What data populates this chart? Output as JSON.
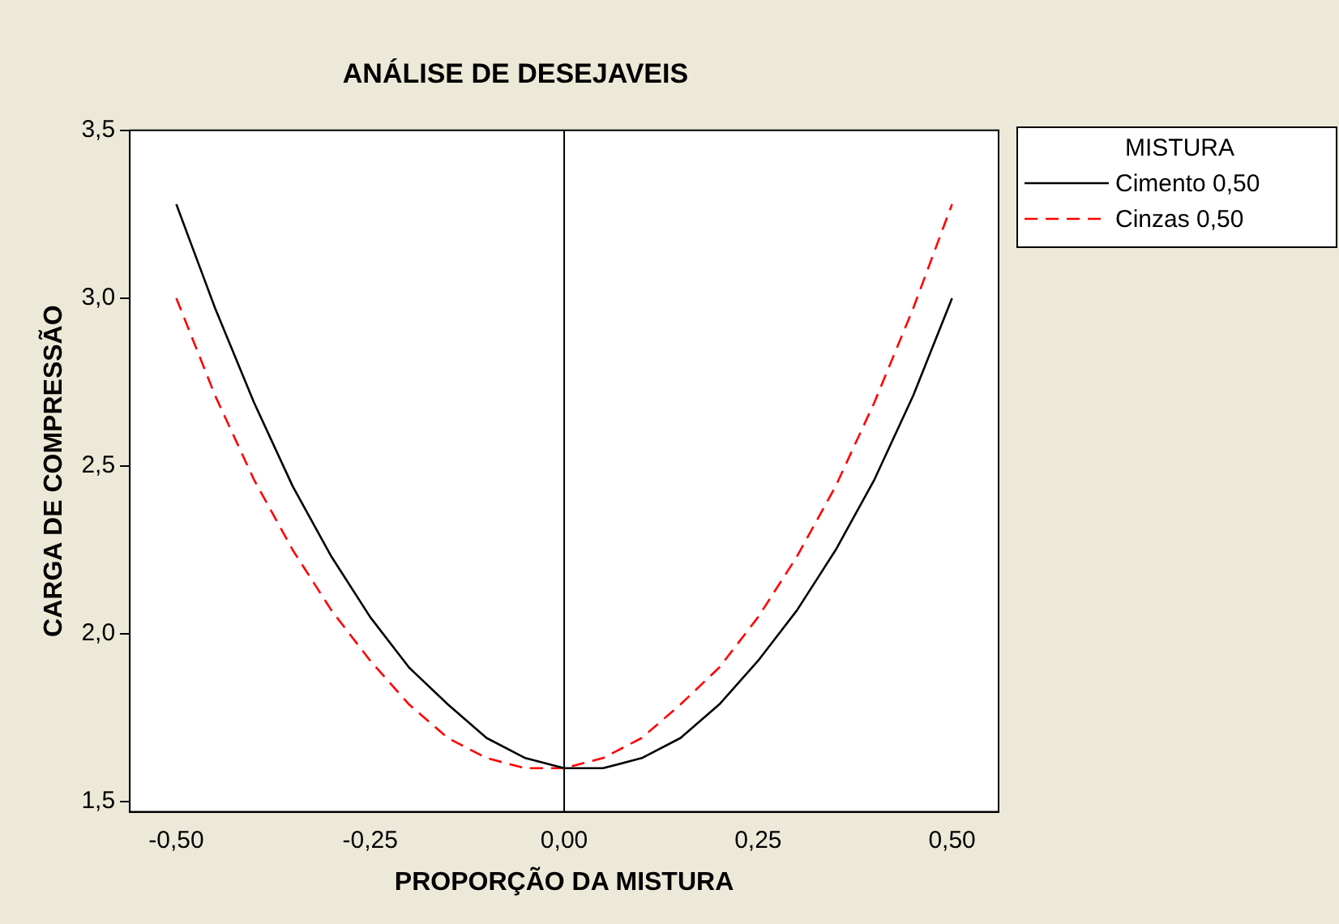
{
  "chart_data": {
    "type": "line",
    "title": "ANÁLISE DE DESEJAVEIS",
    "xlabel": "PROPORÇÃO DA MISTURA",
    "ylabel": "CARGA DE COMPRESSÃO",
    "legend_title": "MISTURA",
    "legend": "top right",
    "x": [
      -0.5,
      -0.45,
      -0.4,
      -0.35,
      -0.3,
      -0.25,
      -0.2,
      -0.15,
      -0.1,
      -0.05,
      0,
      0.05,
      0.1,
      0.15,
      0.2,
      0.25,
      0.3,
      0.35,
      0.4,
      0.45,
      0.5
    ],
    "series": [
      {
        "name": "Cimento 0,50",
        "color": "#000000",
        "line_style": "solid",
        "values": [
          3.28,
          2.97,
          2.69,
          2.44,
          2.23,
          2.05,
          1.9,
          1.79,
          1.69,
          1.63,
          1.6,
          1.6,
          1.63,
          1.69,
          1.79,
          1.92,
          2.07,
          2.25,
          2.46,
          2.71,
          3.0
        ]
      },
      {
        "name": "Cinzas 0,50",
        "color": "#ff0000",
        "line_style": "dashed",
        "values": [
          3.0,
          2.71,
          2.46,
          2.25,
          2.07,
          1.92,
          1.79,
          1.69,
          1.63,
          1.6,
          1.6,
          1.63,
          1.69,
          1.79,
          1.9,
          2.05,
          2.23,
          2.44,
          2.69,
          2.97,
          3.28
        ]
      }
    ],
    "xlim": [
      -0.56,
      0.56
    ],
    "ylim": [
      1.47,
      3.5
    ],
    "xticks": [
      {
        "value": -0.5,
        "label": "-0,50"
      },
      {
        "value": -0.25,
        "label": "-0,25"
      },
      {
        "value": 0,
        "label": "0,00"
      },
      {
        "value": 0.25,
        "label": "0,25"
      },
      {
        "value": 0.5,
        "label": "0,50"
      }
    ],
    "yticks": [
      {
        "value": 1.5,
        "label": "1,5"
      },
      {
        "value": 2,
        "label": "2,0"
      },
      {
        "value": 2.5,
        "label": "2,5"
      },
      {
        "value": 3,
        "label": "3,0"
      },
      {
        "value": 3.5,
        "label": "3,5"
      }
    ],
    "ref_lines": [
      {
        "axis": "x",
        "value": 0,
        "color": "#000000",
        "line_style": "solid"
      }
    ],
    "grid": false,
    "marker": "none"
  }
}
